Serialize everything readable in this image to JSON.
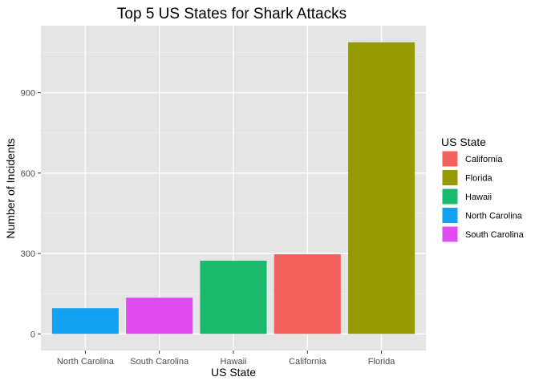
{
  "chart_data": {
    "type": "bar",
    "title": "Top 5 US States for Shark Attacks",
    "xlabel": "US State",
    "ylabel": "Number of Incidents",
    "categories": [
      "North Carolina",
      "South Carolina",
      "Hawaii",
      "California",
      "Florida"
    ],
    "values": [
      96,
      135,
      273,
      297,
      1088
    ],
    "colors": [
      "#13A2F2",
      "#DF4BF0",
      "#19B96E",
      "#F3615C",
      "#959A03"
    ],
    "ylim": [
      -62,
      1150
    ],
    "yticks": [
      0,
      300,
      600,
      900
    ],
    "grid": true,
    "legend": {
      "title": "US State",
      "placement": "right",
      "entries": [
        {
          "label": "California",
          "color": "#F3615C"
        },
        {
          "label": "Florida",
          "color": "#959A03"
        },
        {
          "label": "Hawaii",
          "color": "#19B96E"
        },
        {
          "label": "North Carolina",
          "color": "#13A2F2"
        },
        {
          "label": "South Carolina",
          "color": "#DF4BF0"
        }
      ]
    }
  }
}
